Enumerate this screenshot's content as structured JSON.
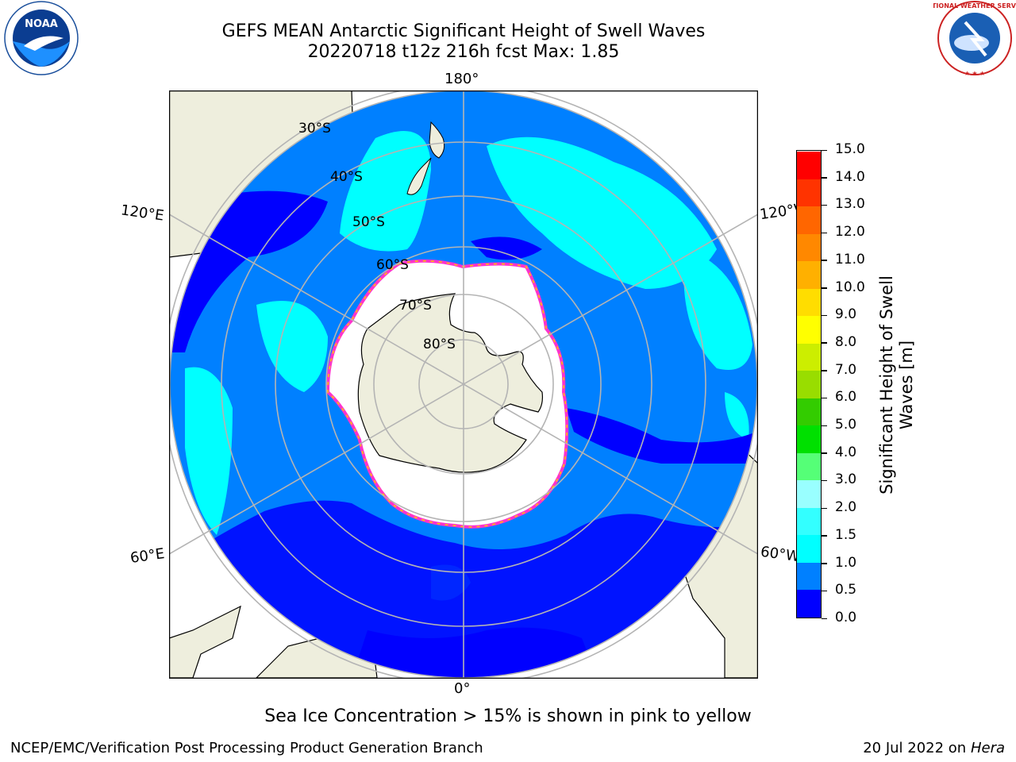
{
  "title": {
    "line1": "GEFS MEAN Antarctic Significant Height of Swell Waves",
    "line2": "20220718 t12z 216h fcst   Max: 1.85"
  },
  "map": {
    "projection": "south polar stereographic",
    "longitude_labels": {
      "top": "180°",
      "bottom": "0°",
      "upper_left": "120°E",
      "upper_right": "120°W",
      "lower_left": "60°E",
      "lower_right": "60°W"
    },
    "latitude_labels": [
      "30°S",
      "40°S",
      "50°S",
      "60°S",
      "70°S",
      "80°S"
    ],
    "colors": {
      "land": "#eeeedd",
      "ice": "#ffffff",
      "grid": "#b4b4b4",
      "ice_edge": [
        "#ff33cc",
        "#ffcc00"
      ]
    }
  },
  "colorbar": {
    "label": "Significant Height of Swell Waves [m]",
    "ticks": [
      "0.0",
      "0.5",
      "1.0",
      "1.5",
      "2.0",
      "3.0",
      "4.0",
      "5.0",
      "6.0",
      "7.0",
      "8.0",
      "9.0",
      "10.0",
      "11.0",
      "12.0",
      "13.0",
      "14.0",
      "15.0"
    ],
    "colors": [
      "#0000ff",
      "#0080ff",
      "#00ffff",
      "#33ffff",
      "#99ffff",
      "#55ff77",
      "#00e000",
      "#33cc00",
      "#99dd00",
      "#ccee00",
      "#ffff00",
      "#ffdd00",
      "#ffb000",
      "#ff8800",
      "#ff6600",
      "#ff3300",
      "#ff0000"
    ]
  },
  "footnote": "Sea Ice Concentration > 15% is shown in pink to yellow",
  "credit": "NCEP/EMC/Verification Post Processing Product Generation Branch",
  "stamp": {
    "date": "20 Jul 2022 on",
    "host": "Hera"
  },
  "logos": {
    "left": "NOAA",
    "right": "NATIONAL WEATHER SERVICE"
  }
}
